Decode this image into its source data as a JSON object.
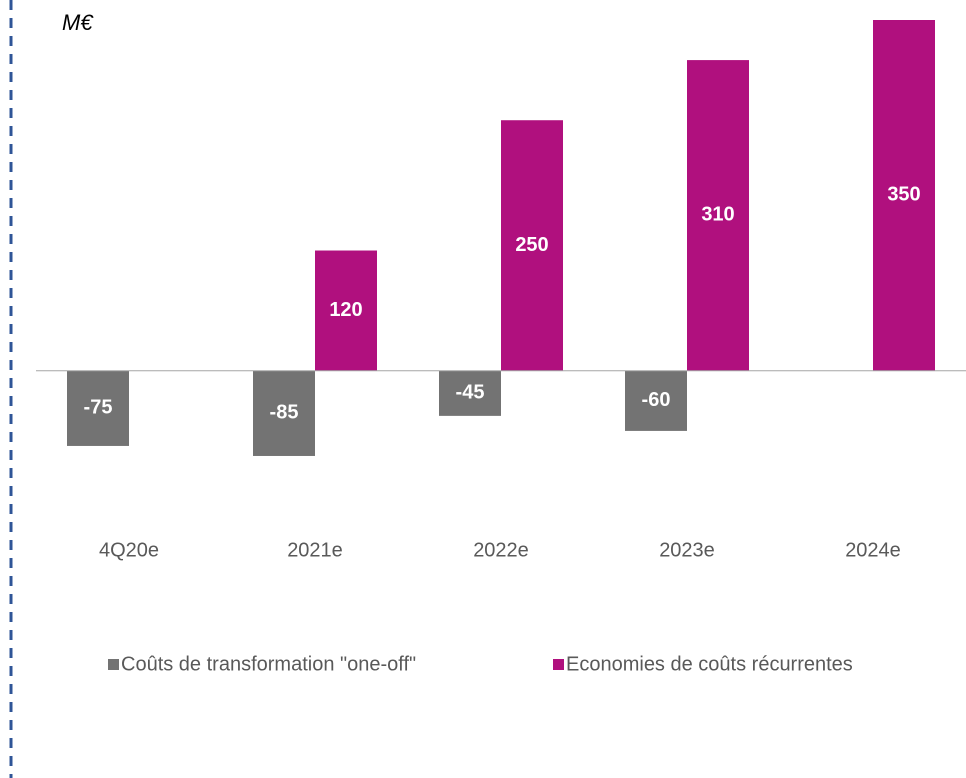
{
  "chart_data": {
    "type": "bar",
    "title": "M€",
    "categories": [
      "4Q20e",
      "2021e",
      "2022e",
      "2023e",
      "2024e"
    ],
    "series": [
      {
        "name": "Coûts de transformation \"one-off\"",
        "color": "#737373",
        "values": [
          -75,
          -85,
          -45,
          -60,
          null
        ]
      },
      {
        "name": "Economies de coûts récurrentes",
        "color": "#b0107e",
        "values": [
          null,
          120,
          250,
          310,
          350
        ]
      }
    ],
    "ylim": [
      -100,
      350
    ]
  }
}
